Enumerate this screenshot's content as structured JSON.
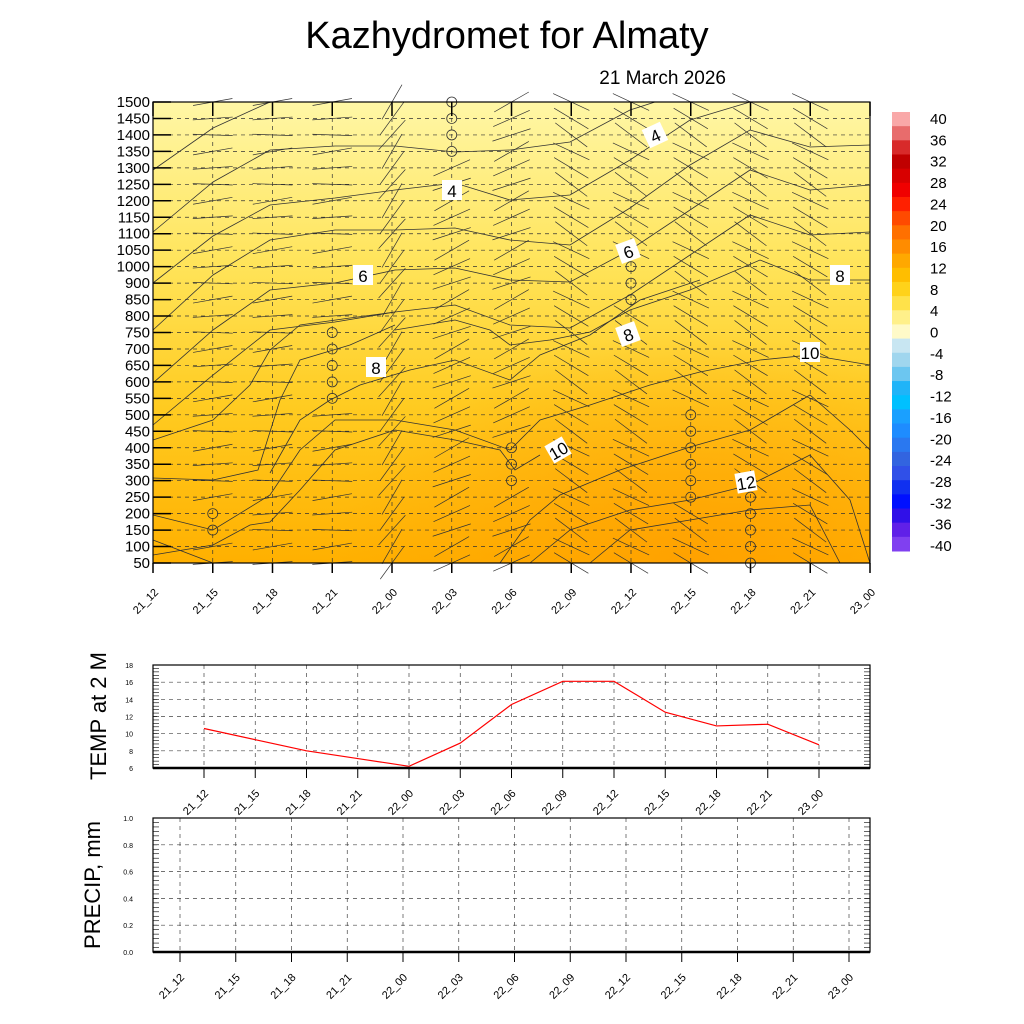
{
  "chart_data": [
    {
      "type": "heatmap",
      "title": "Kazhydromet  for Almaty",
      "subtitle": "21 March 2026",
      "x_tick_labels": [
        "21_12",
        "21_15",
        "21_18",
        "21_21",
        "22_00",
        "22_03",
        "22_06",
        "22_09",
        "22_12",
        "22_15",
        "22_18",
        "22_21",
        "23_00"
      ],
      "y_tick_labels": [
        "1500",
        "1450",
        "1400",
        "1350",
        "1300",
        "1250",
        "1200",
        "1150",
        "1100",
        "1050",
        "1000",
        "900",
        "850",
        "800",
        "750",
        "700",
        "650",
        "600",
        "550",
        "500",
        "450",
        "400",
        "350",
        "300",
        "250",
        "200",
        "150",
        "100",
        "50"
      ],
      "contour_labels": [
        "4",
        "4",
        "6",
        "6",
        "8",
        "8",
        "8",
        "10",
        "10",
        "12"
      ],
      "colorbar": {
        "labels": [
          "40",
          "36",
          "32",
          "28",
          "24",
          "20",
          "16",
          "12",
          "8",
          "4",
          "0",
          "-4",
          "-8",
          "-12",
          "-16",
          "-20",
          "-24",
          "-28",
          "-32",
          "-36",
          "-40"
        ],
        "colors": [
          "#f9a8a8",
          "#e86c6c",
          "#d82a2a",
          "#c00000",
          "#d80000",
          "#f00000",
          "#ff2000",
          "#ff4a00",
          "#ff7000",
          "#ff8c00",
          "#ffa800",
          "#ffbe00",
          "#ffd21a",
          "#ffe24a",
          "#fff08a",
          "#fffac8",
          "#c8e6f2",
          "#a0d6ee",
          "#6cc6f0",
          "#20b4f8",
          "#00c0ff",
          "#1aa0ff",
          "#1e8cff",
          "#2a78f0",
          "#3264e0",
          "#3050e8",
          "#1030f0",
          "#0010ff",
          "#3010e8",
          "#6020e8",
          "#8040f0"
        ]
      },
      "range_c": [
        -40,
        40
      ]
    },
    {
      "type": "line",
      "ylabel": "TEMP at 2 M",
      "categories": [
        "21_12",
        "21_15",
        "21_18",
        "21_21",
        "22_00",
        "22_03",
        "22_06",
        "22_09",
        "22_12",
        "22_15",
        "22_18",
        "22_21",
        "23_00"
      ],
      "values": [
        10.6,
        9.3,
        8.0,
        7.1,
        6.2,
        8.9,
        13.4,
        16.1,
        16.1,
        12.5,
        10.9,
        11.1,
        8.7
      ],
      "ylim": [
        6,
        18
      ],
      "y_ticks": [
        "6",
        "8",
        "10",
        "12",
        "14",
        "16",
        "18"
      ],
      "color": "#ff0000"
    },
    {
      "type": "line",
      "ylabel": "PRECIP, mm",
      "categories": [
        "21_12",
        "21_15",
        "21_18",
        "21_21",
        "22_00",
        "22_03",
        "22_06",
        "22_09",
        "22_12",
        "22_15",
        "22_18",
        "22_21",
        "23_00"
      ],
      "values": [
        0,
        0,
        0,
        0,
        0,
        0,
        0,
        0,
        0,
        0,
        0,
        0,
        0
      ],
      "ylim": [
        0,
        1
      ],
      "y_ticks": [
        "0.0",
        "0.2",
        "0.4",
        "0.6",
        "0.8",
        "1.0"
      ],
      "color": "#00a000"
    }
  ]
}
